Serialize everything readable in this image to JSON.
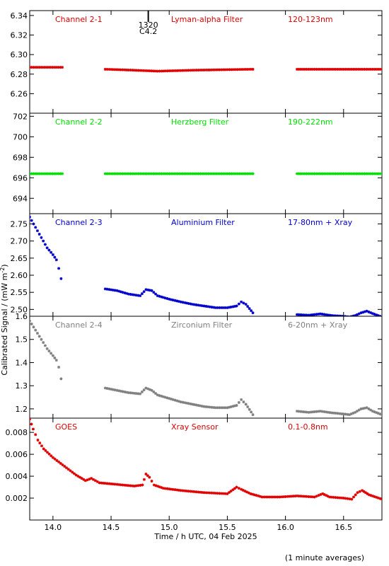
{
  "chart_data": [
    {
      "type": "scatter",
      "title": "",
      "labels": [
        "Channel 2-1",
        "Lyman-alpha Filter",
        "120-123nm"
      ],
      "color": "#e00000",
      "xlim": [
        13.8,
        16.83
      ],
      "ylim": [
        6.24,
        6.345
      ],
      "yticks": [
        6.26,
        6.28,
        6.3,
        6.32,
        6.34
      ],
      "ytick_labels": [
        "6.26",
        "6.28",
        "6.30",
        "6.32",
        "6.34"
      ],
      "marker_annotation": {
        "x": 14.82,
        "lines": [
          "1320",
          "C4.2"
        ]
      },
      "series": [
        {
          "x": [
            13.8,
            14.08
          ],
          "y": [
            6.287,
            6.287
          ]
        },
        {
          "x": [
            14.45,
            14.7,
            14.9,
            15.2,
            15.72
          ],
          "y": [
            6.285,
            6.284,
            6.283,
            6.284,
            6.285
          ]
        },
        {
          "x": [
            16.1,
            16.4,
            16.83
          ],
          "y": [
            6.285,
            6.285,
            6.285
          ]
        }
      ]
    },
    {
      "type": "scatter",
      "title": "",
      "labels": [
        "Channel 2-2",
        "Herzberg Filter",
        "190-222nm"
      ],
      "color": "#00e000",
      "xlim": [
        13.8,
        16.83
      ],
      "ylim": [
        692.5,
        702.3
      ],
      "yticks": [
        694,
        696,
        698,
        700,
        702
      ],
      "ytick_labels": [
        "694",
        "696",
        "698",
        "700",
        "702"
      ],
      "series": [
        {
          "x": [
            13.8,
            14.08
          ],
          "y": [
            696.4,
            696.4
          ]
        },
        {
          "x": [
            14.45,
            15.72
          ],
          "y": [
            696.4,
            696.4
          ]
        },
        {
          "x": [
            16.1,
            16.83
          ],
          "y": [
            696.4,
            696.4
          ]
        }
      ]
    },
    {
      "type": "scatter",
      "title": "",
      "labels": [
        "Channel 2-3",
        "Aluminium Filter",
        "17-80nm + Xray"
      ],
      "color": "#0000cc",
      "xlim": [
        13.8,
        16.83
      ],
      "ylim": [
        2.48,
        2.78
      ],
      "yticks": [
        2.5,
        2.55,
        2.6,
        2.65,
        2.7,
        2.75
      ],
      "ytick_labels": [
        "2.50",
        "2.55",
        "2.60",
        "2.65",
        "2.70",
        "2.75"
      ],
      "series": [
        {
          "x": [
            13.8,
            13.85,
            13.9,
            13.95,
            14.0,
            14.03,
            14.05,
            14.07
          ],
          "y": [
            2.77,
            2.74,
            2.71,
            2.68,
            2.66,
            2.645,
            2.62,
            2.59
          ]
        },
        {
          "x": [
            14.45,
            14.55,
            14.65,
            14.75,
            14.8,
            14.85,
            14.9,
            15.0,
            15.1,
            15.2,
            15.3,
            15.4,
            15.5,
            15.58,
            15.62,
            15.66,
            15.72
          ],
          "y": [
            2.56,
            2.555,
            2.545,
            2.54,
            2.558,
            2.555,
            2.54,
            2.53,
            2.522,
            2.515,
            2.51,
            2.505,
            2.505,
            2.51,
            2.522,
            2.515,
            2.49
          ]
        },
        {
          "x": [
            16.1,
            16.2,
            16.3,
            16.4,
            16.5,
            16.55,
            16.6,
            16.65,
            16.7,
            16.75,
            16.83
          ],
          "y": [
            2.485,
            2.483,
            2.487,
            2.482,
            2.48,
            2.478,
            2.482,
            2.49,
            2.495,
            2.488,
            2.478
          ]
        }
      ]
    },
    {
      "type": "scatter",
      "title": "",
      "labels": [
        "Channel 2-4",
        "Zirconium Filter",
        "6-20nm + Xray"
      ],
      "color": "#808080",
      "xlim": [
        13.8,
        16.83
      ],
      "ylim": [
        1.16,
        1.6
      ],
      "yticks": [
        1.2,
        1.3,
        1.4,
        1.5,
        1.6
      ],
      "ytick_labels": [
        "1.2",
        "1.3",
        "1.4",
        "1.5",
        "1.6"
      ],
      "series": [
        {
          "x": [
            13.8,
            13.85,
            13.9,
            13.95,
            14.0,
            14.03,
            14.05,
            14.07
          ],
          "y": [
            1.58,
            1.54,
            1.5,
            1.46,
            1.43,
            1.41,
            1.38,
            1.33
          ]
        },
        {
          "x": [
            14.45,
            14.55,
            14.65,
            14.75,
            14.8,
            14.85,
            14.9,
            15.0,
            15.1,
            15.2,
            15.3,
            15.4,
            15.5,
            15.58,
            15.62,
            15.66,
            15.72
          ],
          "y": [
            1.29,
            1.28,
            1.27,
            1.265,
            1.29,
            1.28,
            1.26,
            1.245,
            1.23,
            1.22,
            1.21,
            1.205,
            1.205,
            1.215,
            1.24,
            1.22,
            1.175
          ]
        },
        {
          "x": [
            16.1,
            16.2,
            16.3,
            16.4,
            16.5,
            16.55,
            16.6,
            16.65,
            16.7,
            16.75,
            16.83
          ],
          "y": [
            1.19,
            1.185,
            1.19,
            1.183,
            1.178,
            1.175,
            1.185,
            1.2,
            1.205,
            1.19,
            1.175
          ]
        }
      ]
    },
    {
      "type": "scatter",
      "title": "",
      "labels": [
        "GOES",
        "Xray Sensor",
        "0.1-0.8nm"
      ],
      "color": "#e00000",
      "xlim": [
        13.8,
        16.83
      ],
      "ylim": [
        0.0,
        0.0093
      ],
      "yticks": [
        0.002,
        0.004,
        0.006,
        0.008
      ],
      "ytick_labels": [
        "0.002",
        "0.004",
        "0.006",
        "0.008"
      ],
      "series": [
        {
          "x": [
            13.8,
            13.83,
            13.87,
            13.92,
            14.0,
            14.1,
            14.2,
            14.28,
            14.33,
            14.4,
            14.5,
            14.6,
            14.7,
            14.77,
            14.8,
            14.83,
            14.87,
            14.95,
            15.1,
            15.3,
            15.5,
            15.58,
            15.62,
            15.7,
            15.8,
            15.95,
            16.1,
            16.25,
            16.32,
            16.38,
            16.5,
            16.57,
            16.62,
            16.66,
            16.72,
            16.83
          ],
          "y": [
            0.0092,
            0.0083,
            0.0073,
            0.0065,
            0.0057,
            0.0049,
            0.0041,
            0.0036,
            0.0038,
            0.0034,
            0.0033,
            0.0032,
            0.0031,
            0.0032,
            0.0042,
            0.0039,
            0.0032,
            0.0029,
            0.0027,
            0.0025,
            0.0024,
            0.003,
            0.0028,
            0.0024,
            0.0021,
            0.0021,
            0.0022,
            0.0021,
            0.0024,
            0.0021,
            0.002,
            0.0019,
            0.0025,
            0.0027,
            0.0023,
            0.0019
          ]
        }
      ]
    }
  ],
  "shared": {
    "ylabel": "Calibrated Signal / (mW m",
    "ylabel_sup": "-2",
    "ylabel_close": ")",
    "xlabel": "Time / h UTC, 04 Feb 2025",
    "xticks": [
      14.0,
      14.5,
      15.0,
      15.5,
      16.0,
      16.5
    ],
    "xtick_labels": [
      "14.0",
      "14.5",
      "15.0",
      "15.5",
      "16.0",
      "16.5"
    ],
    "footnote": "(1 minute averages)"
  }
}
